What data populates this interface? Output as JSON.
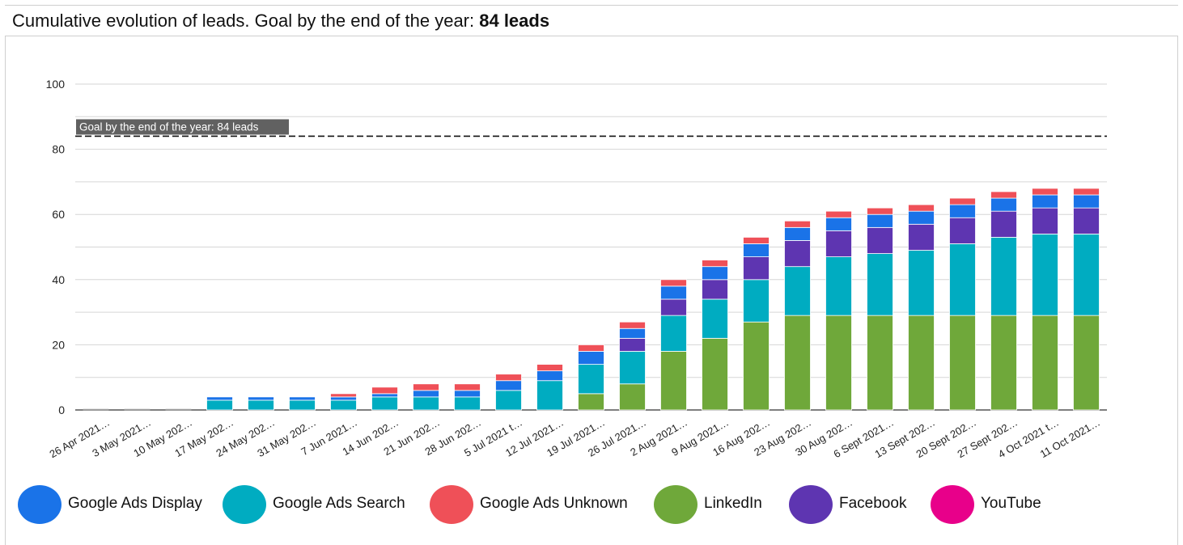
{
  "header": {
    "title_prefix": "Cumulative evolution of leads. Goal by the end of the year: ",
    "title_emphasis": "84 leads"
  },
  "goal": {
    "label": "Goal by the end of the year: 84 leads",
    "value": 84
  },
  "chart_data": {
    "type": "bar",
    "stacked": true,
    "title": "Cumulative evolution of leads. Goal by the end of the year: 84 leads",
    "xlabel": "",
    "ylabel": "",
    "ylim": [
      0,
      100
    ],
    "yticks": [
      0,
      20,
      40,
      60,
      80,
      100
    ],
    "grid": true,
    "legend_position": "bottom",
    "categories": [
      "26 Apr 2021…",
      "3 May 2021…",
      "10 May 202…",
      "17 May 202…",
      "24 May 202…",
      "31 May 202…",
      "7 Jun 2021…",
      "14 Jun 202…",
      "21 Jun 202…",
      "28 Jun 202…",
      "5 Jul 2021 t…",
      "12 Jul 2021…",
      "19 Jul 2021…",
      "26 Jul 2021…",
      "2 Aug 2021…",
      "9 Aug 2021…",
      "16 Aug 202…",
      "23 Aug 202…",
      "30 Aug 202…",
      "6 Sept 2021…",
      "13 Sept 202…",
      "20 Sept 202…",
      "27 Sept 202…",
      "4 Oct 2021 t…",
      "11 Oct 2021…"
    ],
    "series": [
      {
        "name": "LinkedIn",
        "color": "#6fa83a",
        "values": [
          0,
          0,
          0,
          0,
          0,
          0,
          0,
          0,
          0,
          0,
          0,
          0,
          5,
          8,
          18,
          22,
          27,
          29,
          29,
          29,
          29,
          29,
          29,
          29,
          29
        ]
      },
      {
        "name": "Google Ads Search",
        "color": "#00acc1",
        "values": [
          0,
          0,
          0,
          3,
          3,
          3,
          3,
          4,
          4,
          4,
          6,
          9,
          9,
          10,
          11,
          12,
          13,
          15,
          18,
          19,
          20,
          22,
          24,
          25,
          25
        ]
      },
      {
        "name": "Facebook",
        "color": "#5e35b1",
        "values": [
          0,
          0,
          0,
          0,
          0,
          0,
          0,
          0,
          0,
          0,
          0,
          0,
          0,
          4,
          5,
          6,
          7,
          8,
          8,
          8,
          8,
          8,
          8,
          8,
          8
        ]
      },
      {
        "name": "Google Ads Display",
        "color": "#1a73e8",
        "values": [
          0,
          0,
          0,
          1,
          1,
          1,
          1,
          1,
          2,
          2,
          3,
          3,
          4,
          3,
          4,
          4,
          4,
          4,
          4,
          4,
          4,
          4,
          4,
          4,
          4
        ]
      },
      {
        "name": "Google Ads Unknown",
        "color": "#ef5058",
        "values": [
          0,
          0,
          0,
          0,
          0,
          0,
          1,
          2,
          2,
          2,
          2,
          2,
          2,
          2,
          2,
          2,
          2,
          2,
          2,
          2,
          2,
          2,
          2,
          2,
          2
        ]
      },
      {
        "name": "YouTube",
        "color": "#e8008a",
        "values": [
          0,
          0,
          0,
          0,
          0,
          0,
          0,
          0,
          0,
          0,
          0,
          0,
          0,
          0,
          0,
          0,
          0,
          0,
          0,
          0,
          0,
          0,
          0,
          0,
          0
        ]
      }
    ]
  },
  "legend": {
    "items": [
      {
        "label": "Google Ads Display",
        "color": "#1a73e8"
      },
      {
        "label": "Google Ads Search",
        "color": "#00acc1"
      },
      {
        "label": "Google Ads Unknown",
        "color": "#ef5058"
      },
      {
        "label": "LinkedIn",
        "color": "#6fa83a"
      },
      {
        "label": "Facebook",
        "color": "#5e35b1"
      },
      {
        "label": "YouTube",
        "color": "#e8008a"
      }
    ]
  }
}
